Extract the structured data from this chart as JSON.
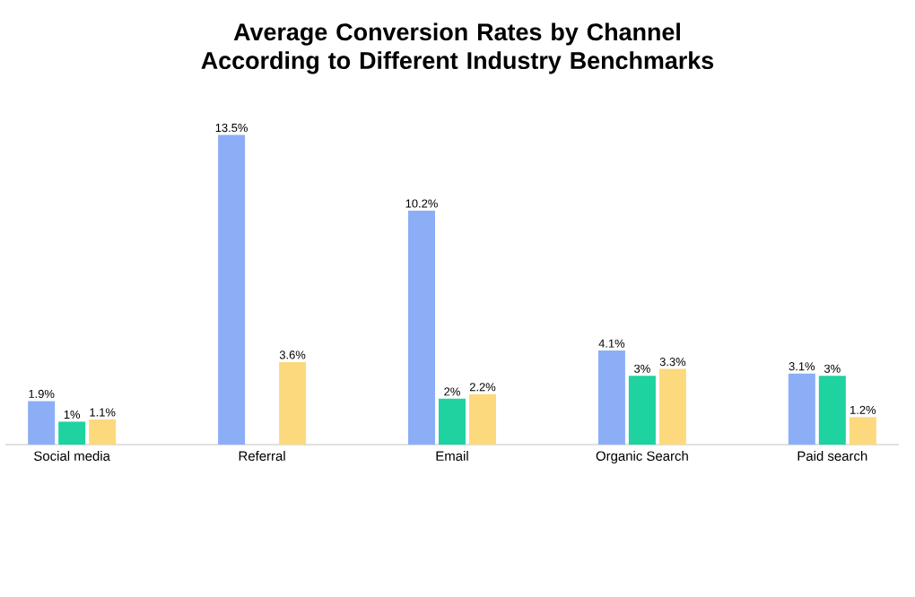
{
  "chart_data": {
    "type": "bar",
    "title": "Average Conversion Rates by Channel According to Different Industry Benchmarks",
    "categories": [
      "Social media",
      "Referral",
      "Email",
      "Organic Search",
      "Paid search"
    ],
    "series": [
      {
        "color": "#8caef7",
        "values": [
          1.9,
          13.5,
          10.2,
          4.1,
          3.1
        ],
        "value_labels": [
          "1.9%",
          "13.5%",
          "10.2%",
          "4.1%",
          "3.1%"
        ]
      },
      {
        "color": "#1ed3a0",
        "values": [
          1,
          null,
          2,
          3,
          3
        ],
        "value_labels": [
          "1%",
          null,
          "2%",
          "3%",
          "3%"
        ]
      },
      {
        "color": "#fdd97e",
        "values": [
          1.1,
          3.6,
          2.2,
          3.3,
          1.2
        ],
        "value_labels": [
          "1.1%",
          "3.6%",
          "2.2%",
          "3.3%",
          "1.2%"
        ]
      }
    ],
    "stacked": false
  }
}
